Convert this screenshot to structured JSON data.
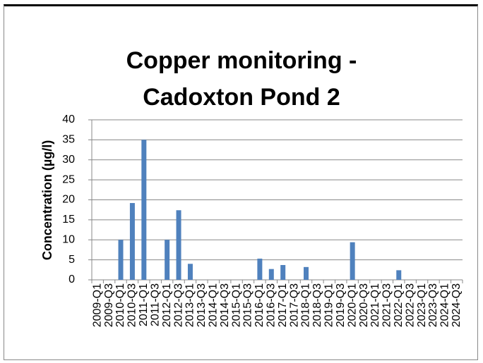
{
  "chart_data": {
    "type": "bar",
    "title": "Copper monitoring - Cadoxton Pond 2",
    "y_label": "Concentration (µg/l)",
    "categories": [
      "2009-Q1",
      "2009-Q3",
      "2010-Q1",
      "2010-Q3",
      "2011-Q1",
      "2011-Q3",
      "2012-Q1",
      "2012-Q3",
      "2013-Q1",
      "2013-Q3",
      "2014-Q1",
      "2014-Q3",
      "2015-Q1",
      "2015-Q3",
      "2016-Q1",
      "2016-Q3",
      "2017-Q1",
      "2017-Q3",
      "2018-Q1",
      "2018-Q3",
      "2019-Q1",
      "2019-Q3",
      "2020-Q1",
      "2020-Q3",
      "2021-Q1",
      "2021-Q3",
      "2022-Q1",
      "2022-Q3",
      "2023-Q1",
      "2023-Q3",
      "2024-Q1",
      "2024-Q3"
    ],
    "values": [
      null,
      null,
      10,
      19.2,
      35,
      null,
      10,
      17.4,
      4,
      null,
      null,
      null,
      null,
      null,
      5.3,
      2.7,
      3.7,
      null,
      3.2,
      null,
      null,
      null,
      9.4,
      null,
      null,
      null,
      2.4,
      null,
      null,
      null,
      null,
      null
    ],
    "color": "#4f81bd",
    "ylim": [
      0,
      40
    ],
    "yticks": [
      0,
      5,
      10,
      15,
      20,
      25,
      30,
      35,
      40
    ],
    "grid": true
  }
}
